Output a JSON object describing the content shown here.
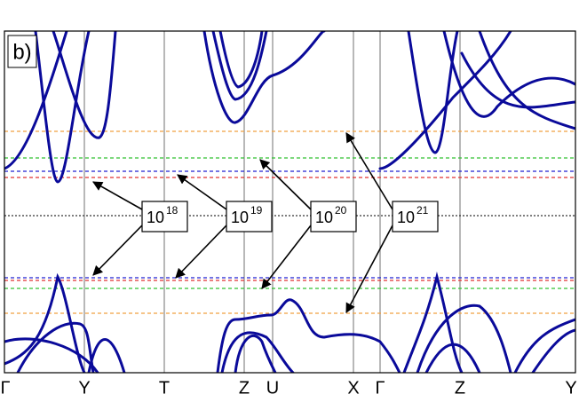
{
  "panel_label": "b)",
  "k_path": [
    "Γ",
    "Y",
    "T",
    "Z",
    "U",
    "X",
    "Γ",
    "Z",
    "Y"
  ],
  "annotations": [
    {
      "base": "10",
      "exponent": "18"
    },
    {
      "base": "10",
      "exponent": "19"
    },
    {
      "base": "10",
      "exponent": "20"
    },
    {
      "base": "10",
      "exponent": "21"
    }
  ]
}
